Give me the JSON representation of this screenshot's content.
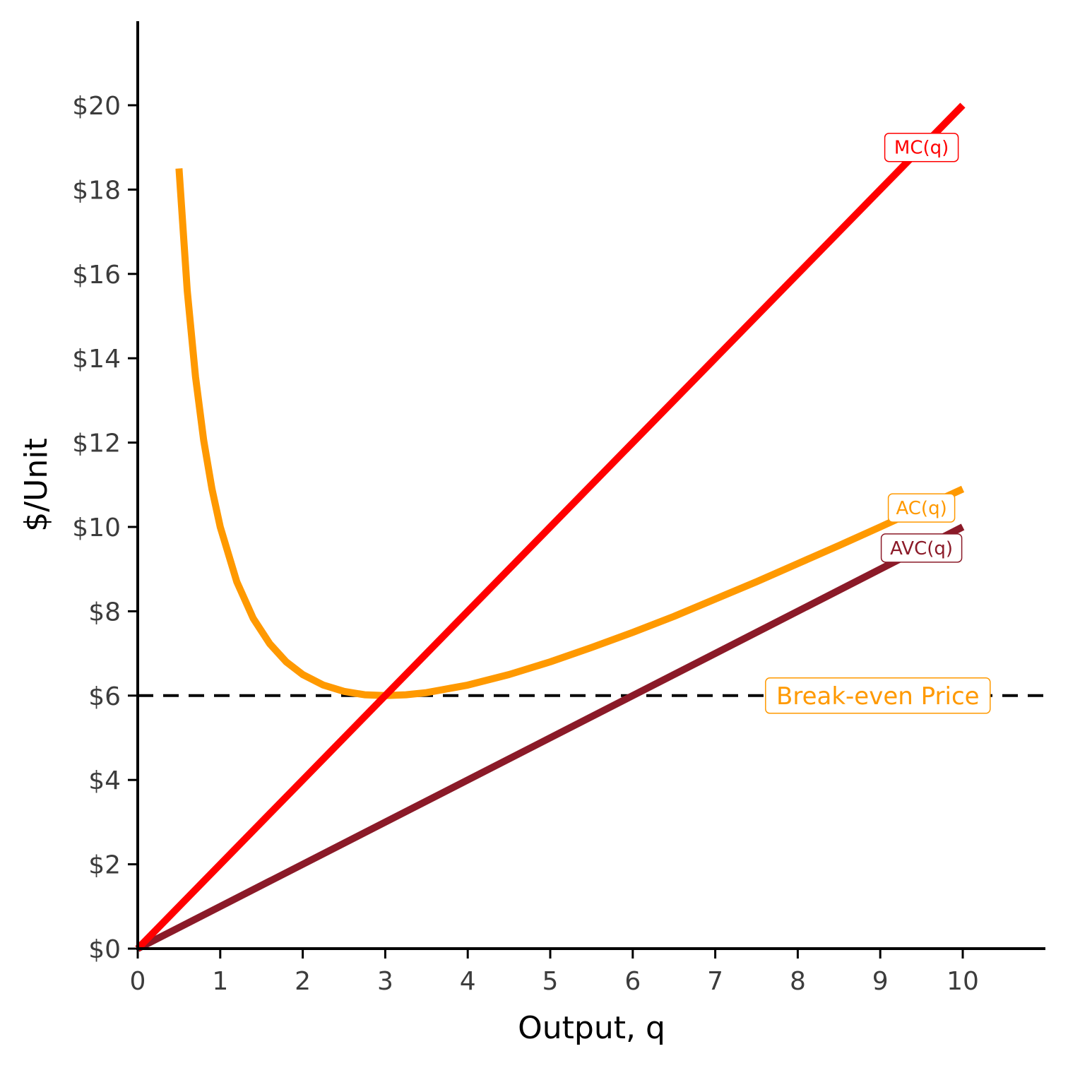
{
  "chart_data": {
    "type": "line",
    "title": "",
    "xlabel": "Output, q",
    "ylabel": "$/Unit",
    "xlim": [
      0,
      11
    ],
    "ylim": [
      0,
      22
    ],
    "x_ticks": [
      0,
      1,
      2,
      3,
      4,
      5,
      6,
      7,
      8,
      9,
      10
    ],
    "x_tick_labels": [
      "0",
      "1",
      "2",
      "3",
      "4",
      "5",
      "6",
      "7",
      "8",
      "9",
      "10"
    ],
    "y_ticks": [
      0,
      2,
      4,
      6,
      8,
      10,
      12,
      14,
      16,
      18,
      20
    ],
    "y_tick_labels": [
      "$0",
      "$2",
      "$4",
      "$6",
      "$8",
      "$10",
      "$12",
      "$14",
      "$16",
      "$18",
      "$20"
    ],
    "grid": false,
    "legend": "none",
    "series": [
      {
        "name": "MC(q)",
        "color": "#ff0000",
        "x": [
          0,
          1,
          2,
          3,
          4,
          5,
          6,
          7,
          8,
          9,
          10
        ],
        "y": [
          0,
          2,
          4,
          6,
          8,
          10,
          12,
          14,
          16,
          18,
          20
        ],
        "label_at": [
          9.5,
          19
        ]
      },
      {
        "name": "AC(q)",
        "color": "#ff9900",
        "x": [
          0.5,
          0.6,
          0.7,
          0.8,
          0.9,
          1.0,
          1.2,
          1.4,
          1.6,
          1.8,
          2.0,
          2.25,
          2.5,
          2.75,
          3.0,
          3.25,
          3.5,
          4.0,
          4.5,
          5.0,
          5.5,
          6.0,
          6.5,
          7.0,
          7.5,
          8.0,
          8.5,
          9.0,
          9.5,
          10.0
        ],
        "y": [
          18.5,
          15.6,
          13.56,
          12.05,
          10.9,
          10.0,
          8.7,
          7.83,
          7.23,
          6.8,
          6.5,
          6.25,
          6.1,
          6.02,
          6.0,
          6.02,
          6.07,
          6.25,
          6.5,
          6.8,
          7.14,
          7.5,
          7.88,
          8.29,
          8.7,
          9.13,
          9.56,
          10.0,
          10.45,
          10.9
        ],
        "label_at": [
          9.5,
          10.45
        ]
      },
      {
        "name": "AVC(q)",
        "color": "#8b1a28",
        "x": [
          0,
          10
        ],
        "y": [
          0,
          10
        ],
        "label_at": [
          9.5,
          9.5
        ]
      }
    ],
    "reference_lines": [
      {
        "orientation": "horizontal",
        "value": 6,
        "style": "dashed",
        "color": "#000000",
        "label": "Break-even Price",
        "label_color": "#ff9900",
        "label_at": [
          8.5,
          6
        ]
      }
    ]
  }
}
